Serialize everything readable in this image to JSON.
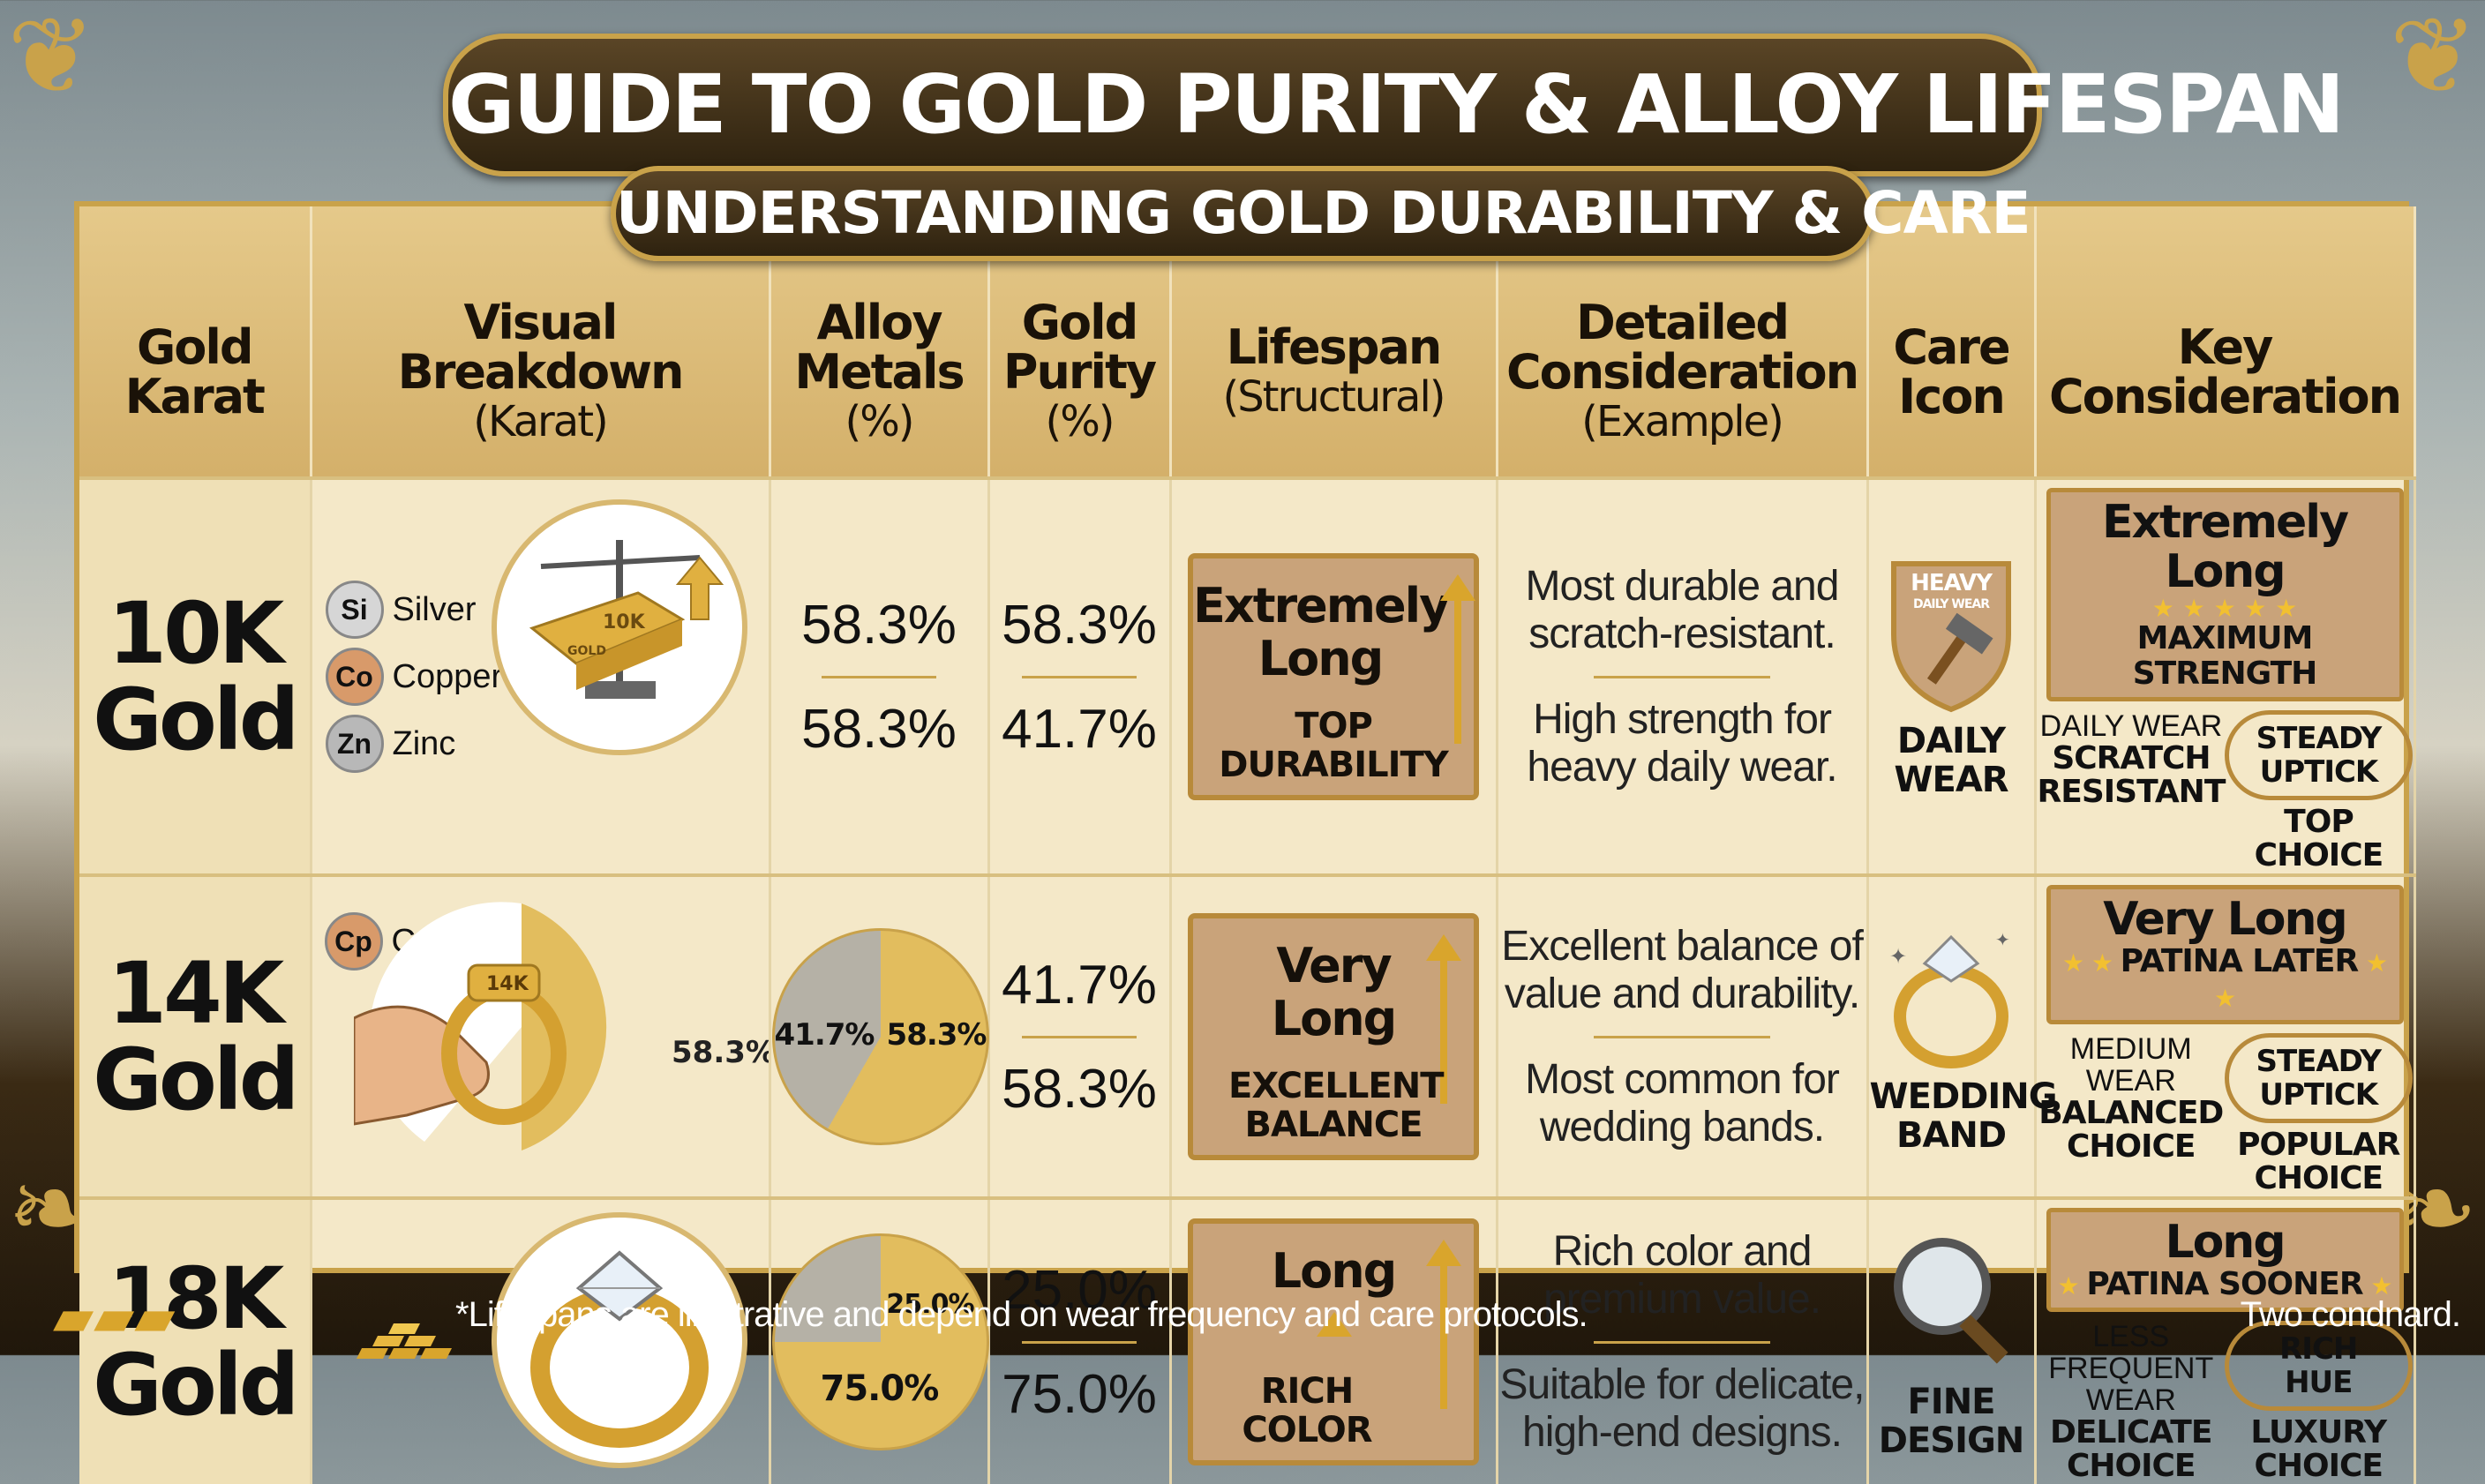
{
  "title": "GUIDE TO GOLD PURITY & ALLOY LIFESPAN",
  "subtitle": "UNDERSTANDING GOLD DURABILITY & CARE",
  "headers": [
    {
      "main": "Gold Karat",
      "sub": ""
    },
    {
      "main": "Visual Breakdown",
      "sub": "(Karat)"
    },
    {
      "main": "Alloy Metals",
      "sub": "(%)"
    },
    {
      "main": "Gold Purity",
      "sub": "(%)"
    },
    {
      "main": "Lifespan",
      "sub": "(Structural)"
    },
    {
      "main": "Detailed Consideration",
      "sub": "(Example)"
    },
    {
      "main": "Care Icon",
      "sub": ""
    },
    {
      "main": "Key Consideration",
      "sub": ""
    }
  ],
  "rows": [
    {
      "karat": "10K Gold",
      "metals": [
        {
          "sym": "Si",
          "name": "Silver",
          "color": "#c8c8c8"
        },
        {
          "sym": "Co",
          "name": "Copper",
          "color": "#d89a6a"
        },
        {
          "sym": "Zn",
          "name": "Zinc",
          "color": "#b0b0b0"
        }
      ],
      "bar_label": "10K",
      "bar_small": "GOLD",
      "alloy_a": "58.3%",
      "alloy_b": "58.3%",
      "purity_a": "58.3%",
      "purity_b": "41.7%",
      "life_main": "Extremely Long",
      "life_small": "TOP DURABILITY",
      "detail_a": "Most durable and scratch-resistant.",
      "detail_b": "High strength for heavy daily wear.",
      "care_shield": "HEAVY",
      "care_shield_sub": "DAILY WEAR",
      "care_label": "DAILY WEAR",
      "kc_big": "Extremely Long",
      "kc_tag": "MAXIMUM STRENGTH",
      "kc_left_lbl": "DAILY WEAR",
      "kc_left_bold": "SCRATCH RESISTANT",
      "kc_right_oval": "STEADY UPTICK",
      "kc_right_bold": "TOP CHOICE"
    },
    {
      "karat": "14K Gold",
      "metals": [
        {
          "sym": "Cp",
          "name": "Copper",
          "color": "#d89a6a"
        }
      ],
      "ring_label": "14K",
      "ring_pct": "58.3%",
      "pie_gold": 58.3,
      "pie_a": "41.7%",
      "pie_b": "58.3%",
      "purity_a": "41.7%",
      "purity_b": "58.3%",
      "life_main": "Very Long",
      "life_small": "EXCELLENT BALANCE",
      "detail_a": "Excellent balance of value and durability.",
      "detail_b": "Most common for wedding bands.",
      "care_label": "WEDDING BAND",
      "kc_big": "Very Long",
      "kc_tag": "PATINA LATER",
      "kc_left_lbl": "MEDIUM WEAR",
      "kc_left_bold": "BALANCED CHOICE",
      "kc_right_oval": "STEADY UPTICK",
      "kc_right_bold": "POPULAR CHOICE"
    },
    {
      "karat": "18K Gold",
      "pie_gold": 75.0,
      "pie_a": "25.0%",
      "pie_b": "75.0%",
      "purity_a": "25.0%",
      "purity_b": "75.0%",
      "life_main": "Long",
      "life_small": "RICH COLOR",
      "detail_a": "Rich color and premium value.",
      "detail_b": "Suitable for delicate, high-end designs.",
      "care_label": "FINE DESIGN",
      "kc_big": "Long",
      "kc_tag": "PATINA SOONER",
      "kc_left_lbl": "LESS FREQUENT WEAR",
      "kc_left_bold": "DELICATE CHOICE",
      "kc_right_oval": "RICH HUE",
      "kc_right_bold": "LUXURY CHOICE"
    }
  ],
  "footnote": "*Lifespans are illustrative and depend on wear frequency and care protocols.",
  "signoff": "Two condnard.",
  "colors": {
    "gold": "#c9a24a",
    "dark_brown": "#2e220f",
    "card": "#c9a37a",
    "alloy_grey": "#b5b1a6"
  }
}
